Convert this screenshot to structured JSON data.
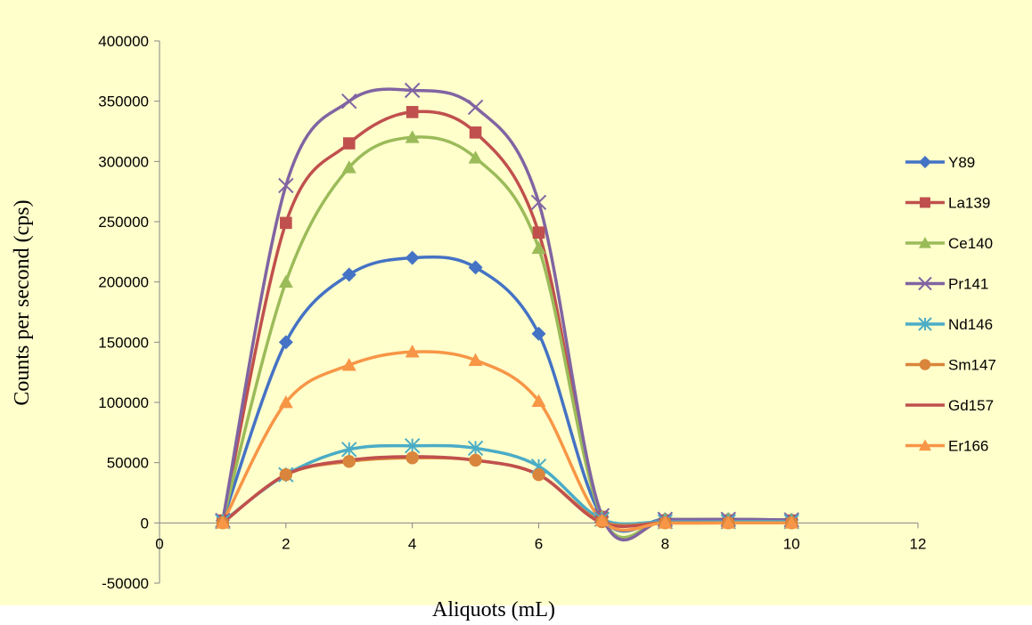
{
  "chart_data": {
    "type": "line",
    "title": "",
    "xlabel": "Aliquots (mL)",
    "ylabel": "Counts per second (cps)",
    "xlim": [
      0,
      12
    ],
    "ylim": [
      -50000,
      400000
    ],
    "x_ticks": [
      "0",
      "2",
      "4",
      "6",
      "8",
      "10",
      "12"
    ],
    "y_ticks": [
      "400000",
      "350000",
      "300000",
      "250000",
      "200000",
      "150000",
      "100000",
      "50000",
      "0",
      "-50000"
    ],
    "grid": false,
    "legend_position": "right",
    "x": [
      1,
      2,
      3,
      4,
      5,
      6,
      7,
      8,
      9,
      10
    ],
    "series": [
      {
        "name": "Y89",
        "color": "#4472C4",
        "marker": "diamond",
        "values": [
          2000,
          150000,
          206000,
          220000,
          212000,
          157000,
          5000,
          3000,
          3000,
          2500
        ]
      },
      {
        "name": "La139",
        "color": "#C0504D",
        "marker": "square",
        "values": [
          2000,
          249000,
          315000,
          341000,
          324000,
          241000,
          5000,
          2000,
          2000,
          2000
        ]
      },
      {
        "name": "Ce140",
        "color": "#9BBB59",
        "marker": "triangle",
        "values": [
          2000,
          200000,
          295000,
          320000,
          303000,
          228000,
          5000,
          3000,
          3000,
          2500
        ]
      },
      {
        "name": "Pr141",
        "color": "#8064A2",
        "marker": "x",
        "values": [
          2000,
          280000,
          350000,
          359000,
          345000,
          266000,
          6000,
          3000,
          3000,
          2500
        ]
      },
      {
        "name": "Nd146",
        "color": "#4BACC6",
        "marker": "star",
        "values": [
          1000,
          40000,
          61000,
          64000,
          62000,
          47000,
          3000,
          1000,
          1000,
          1000
        ]
      },
      {
        "name": "Sm147",
        "color": "#D9853B",
        "marker": "circle",
        "values": [
          0,
          40000,
          51000,
          54000,
          52000,
          40000,
          1000,
          0,
          0,
          0
        ]
      },
      {
        "name": "Gd157",
        "color": "#C0504D",
        "marker": "none",
        "values": [
          0,
          40000,
          52000,
          55000,
          52000,
          40000,
          0,
          0,
          0,
          0
        ]
      },
      {
        "name": "Er166",
        "color": "#F79646",
        "marker": "triangle",
        "values": [
          0,
          100000,
          131000,
          142000,
          135000,
          101000,
          2000,
          0,
          0,
          0
        ]
      }
    ]
  }
}
